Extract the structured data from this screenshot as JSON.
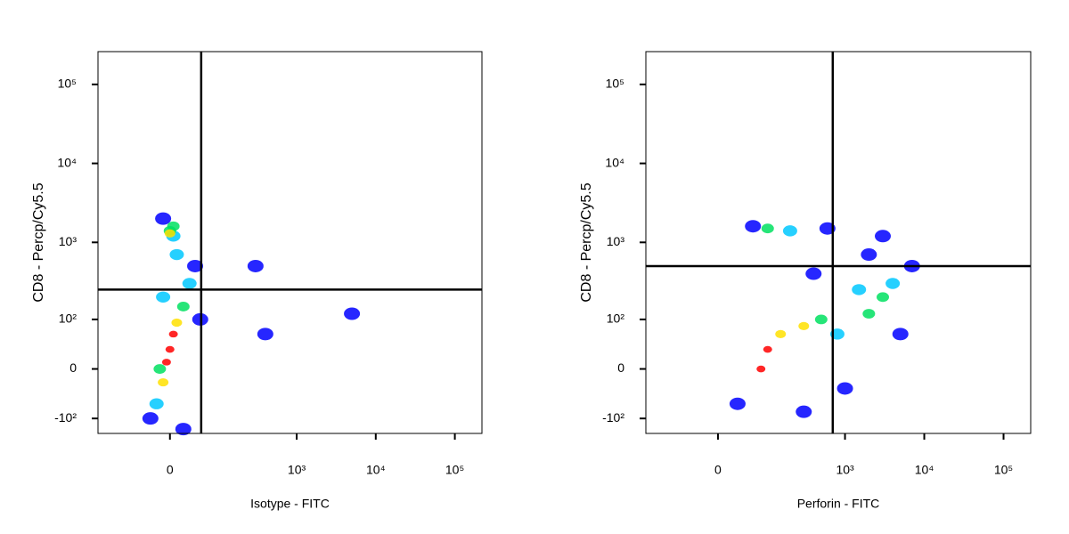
{
  "chart_data": [
    {
      "type": "scatter",
      "x_label": "Isotype - FITC",
      "y_label": "CD8 - Percp/Cy5.5",
      "xlim": [
        -200,
        220000
      ],
      "ylim": [
        -160,
        260000
      ],
      "xticks": [
        0,
        {
          "value": 1000,
          "label": "10³"
        },
        {
          "value": 10000,
          "label": "10⁴"
        },
        {
          "value": 100000,
          "label": "10⁵"
        }
      ],
      "yticks": [
        {
          "value": -100,
          "label": "-10²"
        },
        0,
        {
          "value": 100,
          "label": "10²"
        },
        {
          "value": 1000,
          "label": "10³"
        },
        {
          "value": 10000,
          "label": "10⁴"
        },
        {
          "value": 100000,
          "label": "10⁵"
        }
      ],
      "gates": {
        "x": 52,
        "y": 250
      },
      "series": [
        {
          "color": "#0000ff",
          "x": [
            -10,
            40,
            -30,
            50,
            300,
            400,
            5000,
            20
          ],
          "values": [
            2000,
            500,
            -100,
            100,
            500,
            60,
            120,
            -140
          ]
        },
        {
          "color": "#00c8ff",
          "x": [
            5,
            30,
            -20,
            10,
            -10
          ],
          "values": [
            1200,
            300,
            -60,
            700,
            200
          ]
        },
        {
          "color": "#00e060",
          "x": [
            0,
            20,
            -15,
            5
          ],
          "values": [
            1400,
            150,
            0,
            1600
          ]
        },
        {
          "color": "#ffe000",
          "x": [
            10,
            -10,
            0
          ],
          "values": [
            90,
            -20,
            1300
          ]
        },
        {
          "color": "#ff0000",
          "x": [
            0,
            5,
            -5
          ],
          "values": [
            30,
            60,
            10
          ]
        }
      ]
    },
    {
      "type": "scatter",
      "x_label": "Perforin - FITC",
      "y_label": "CD8 - Percp/Cy5.5",
      "xlim": [
        -200,
        220000
      ],
      "ylim": [
        -160,
        260000
      ],
      "xticks": [
        0,
        {
          "value": 1000,
          "label": "10³"
        },
        {
          "value": 10000,
          "label": "10⁴"
        },
        {
          "value": 100000,
          "label": "10⁵"
        }
      ],
      "yticks": [
        {
          "value": -100,
          "label": "-10²"
        },
        0,
        {
          "value": 100,
          "label": "10²"
        },
        {
          "value": 1000,
          "label": "10³"
        },
        {
          "value": 10000,
          "label": "10⁴"
        },
        {
          "value": 100000,
          "label": "10⁵"
        }
      ],
      "gates": {
        "x": 700,
        "y": 500
      },
      "series": [
        {
          "color": "#0000ff",
          "x": [
            60,
            600,
            3000,
            7000,
            5000,
            1000,
            30,
            300,
            2000,
            400
          ],
          "values": [
            1600,
            1500,
            1200,
            500,
            60,
            -30,
            -60,
            -80,
            700,
            400
          ]
        },
        {
          "color": "#00c8ff",
          "x": [
            200,
            1500,
            4000,
            800
          ],
          "values": [
            1400,
            250,
            300,
            60
          ]
        },
        {
          "color": "#00e060",
          "x": [
            100,
            2000,
            500,
            3000
          ],
          "values": [
            1500,
            120,
            100,
            200
          ]
        },
        {
          "color": "#ffe000",
          "x": [
            300,
            150
          ],
          "values": [
            80,
            60
          ]
        },
        {
          "color": "#ff0000",
          "x": [
            100,
            80
          ],
          "values": [
            30,
            0
          ]
        }
      ]
    }
  ]
}
